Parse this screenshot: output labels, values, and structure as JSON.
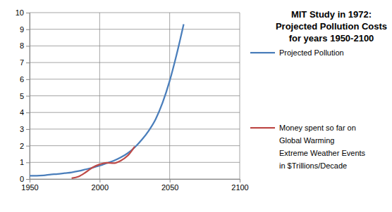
{
  "chart_data": {
    "type": "line",
    "title": "MIT Study in 1972:\nProjected Pollution Costs\nfor years 1950-2100",
    "x": [
      1950,
      1955,
      1960,
      1965,
      1970,
      1975,
      1980,
      1985,
      1990,
      1995,
      2000,
      2005,
      2010,
      2015,
      2020,
      2025,
      2030,
      2035,
      2040,
      2045,
      2050,
      2055,
      2060
    ],
    "series": [
      {
        "name": "Projected Pollution",
        "color": "#4a7ebb",
        "line_style": "solid",
        "values": [
          0.2,
          0.2,
          0.22,
          0.27,
          0.3,
          0.35,
          0.4,
          0.48,
          0.58,
          0.68,
          0.8,
          0.95,
          1.1,
          1.3,
          1.55,
          1.9,
          2.35,
          2.9,
          3.6,
          4.6,
          5.9,
          7.5,
          9.3
        ]
      },
      {
        "name": "Money spent so far on\nGlobal Warming\nExtreme Weather Events\nin $Trillions/Decade",
        "color": "#be4b48",
        "line_style": "solid",
        "values": [
          null,
          null,
          null,
          null,
          null,
          null,
          0.05,
          0.15,
          0.4,
          0.7,
          0.88,
          0.98,
          0.95,
          1.1,
          1.4,
          1.95,
          null,
          null,
          null,
          null,
          null,
          null,
          null
        ]
      }
    ],
    "xlim": [
      1950,
      2100
    ],
    "xticks": [
      1950,
      2000,
      2050,
      2100
    ],
    "ylim": [
      0,
      10
    ],
    "yticks": [
      0,
      1,
      2,
      3,
      4,
      5,
      6,
      7,
      8,
      9,
      10
    ],
    "grid": true,
    "legend": "right"
  }
}
